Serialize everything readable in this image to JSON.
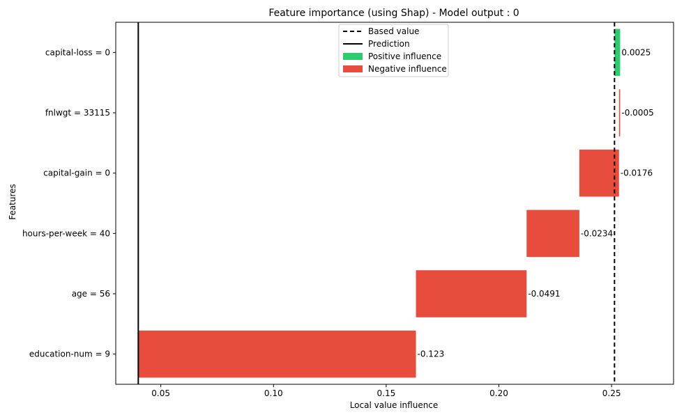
{
  "chart_data": {
    "type": "bar",
    "orientation": "horizontal",
    "title": "Feature importance (using Shap) - Model output : 0",
    "xlabel": "Local value influence",
    "ylabel": "Features",
    "xlim": [
      0.03,
      0.2775
    ],
    "xticks": [
      0.05,
      0.1,
      0.15,
      0.2,
      0.25
    ],
    "xtick_labels": [
      "0.05",
      "0.10",
      "0.15",
      "0.20",
      "0.25"
    ],
    "base_value": 0.2513,
    "prediction": 0.04,
    "legend_position": "upper-center",
    "legend": [
      {
        "label": "Based value",
        "style": "dashed-line"
      },
      {
        "label": "Prediction",
        "style": "solid-line"
      },
      {
        "label": "Positive influence",
        "style": "patch",
        "color": "#2ecc71"
      },
      {
        "label": "Negative influence",
        "style": "patch",
        "color": "#e74c3c"
      }
    ],
    "colors": {
      "positive": "#2ecc71",
      "negative": "#e74c3c"
    },
    "bars": [
      {
        "feature": "capital-loss = 0",
        "start": 0.2513,
        "end": 0.2538,
        "value_label": "0.0025",
        "sign": "positive"
      },
      {
        "feature": "fnlwgt = 33115",
        "start": 0.2538,
        "end": 0.2533,
        "value_label": "-0.0005",
        "sign": "negative"
      },
      {
        "feature": "capital-gain = 0",
        "start": 0.2533,
        "end": 0.2357,
        "value_label": "-0.0176",
        "sign": "negative"
      },
      {
        "feature": "hours-per-week = 40",
        "start": 0.2357,
        "end": 0.2123,
        "value_label": "-0.0234",
        "sign": "negative"
      },
      {
        "feature": "age = 56",
        "start": 0.2123,
        "end": 0.1632,
        "value_label": "-0.0491",
        "sign": "negative"
      },
      {
        "feature": "education-num = 9",
        "start": 0.1632,
        "end": 0.0402,
        "value_label": "-0.123",
        "sign": "negative"
      }
    ]
  }
}
